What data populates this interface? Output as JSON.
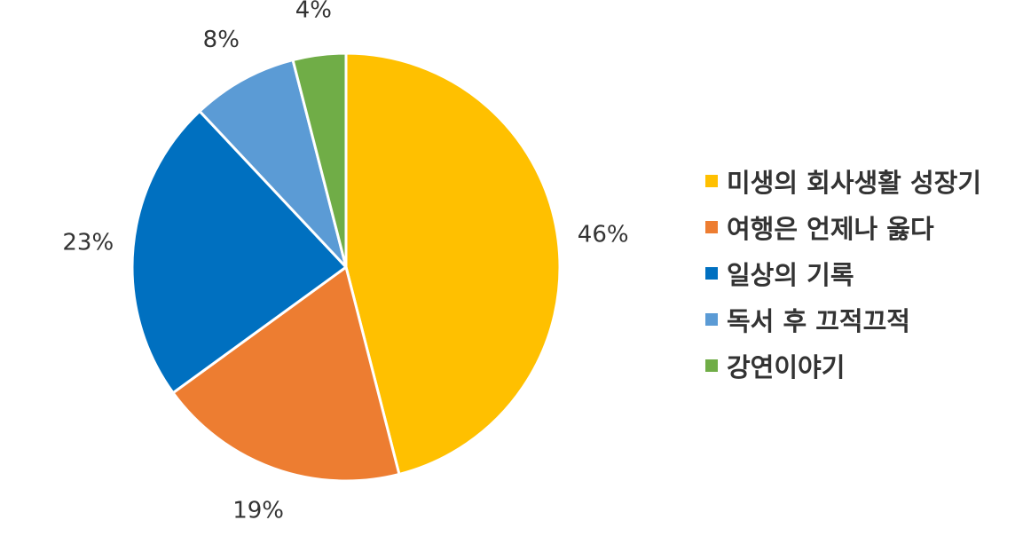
{
  "chart_data": {
    "type": "pie",
    "title": "",
    "categories": [
      "미생의 회사생활 성장기",
      "여행은 언제나 옳다",
      "일상의 기록",
      "독서 후 끄적끄적",
      "강연이야기"
    ],
    "values": [
      46,
      19,
      23,
      8,
      4
    ],
    "value_labels": [
      "46%",
      "19%",
      "23%",
      "8%",
      "4%"
    ],
    "colors": [
      "#FFC000",
      "#ED7D31",
      "#0070C0",
      "#5B9BD5",
      "#70AD47"
    ],
    "start_angle": "12 o'clock",
    "direction": "clockwise",
    "legend_position": "right"
  }
}
